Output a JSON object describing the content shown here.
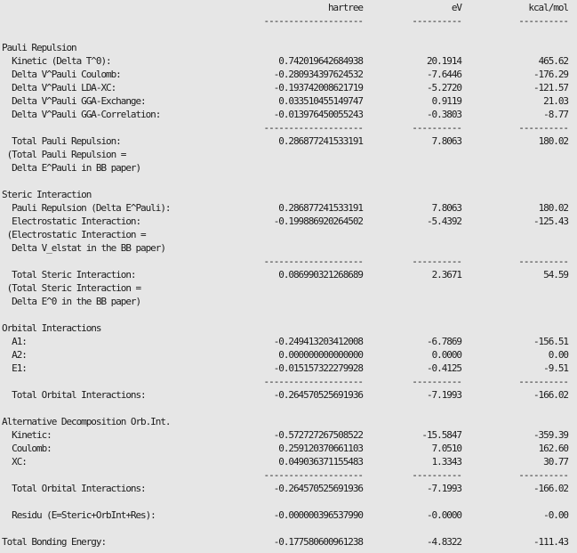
{
  "rows": [
    {
      "label": "",
      "hartree": "hartree",
      "ev": "eV",
      "kcal": "kcal/mol"
    },
    {
      "label": "",
      "hartree": "--------------------",
      "ev": "----------",
      "kcal": "----------"
    },
    {
      "label": ""
    },
    {
      "label": "Pauli Repulsion"
    },
    {
      "label": "  Kinetic (Delta T^0):",
      "hartree": "0.742019642684938",
      "ev": "20.1914",
      "kcal": "465.62"
    },
    {
      "label": "  Delta V^Pauli Coulomb:",
      "hartree": "-0.280934397624532",
      "ev": "-7.6446",
      "kcal": "-176.29"
    },
    {
      "label": "  Delta V^Pauli LDA-XC:",
      "hartree": "-0.193742008621719",
      "ev": "-5.2720",
      "kcal": "-121.57"
    },
    {
      "label": "  Delta V^Pauli GGA-Exchange:",
      "hartree": "0.033510455149747",
      "ev": "0.9119",
      "kcal": "21.03"
    },
    {
      "label": "  Delta V^Pauli GGA-Correlation:",
      "hartree": "-0.013976450055243",
      "ev": "-0.3803",
      "kcal": "-8.77"
    },
    {
      "label": "",
      "hartree": "--------------------",
      "ev": "----------",
      "kcal": "----------"
    },
    {
      "label": "  Total Pauli Repulsion:",
      "hartree": "0.286877241533191",
      "ev": "7.8063",
      "kcal": "180.02"
    },
    {
      "label": " (Total Pauli Repulsion ="
    },
    {
      "label": "  Delta E^Pauli in BB paper)"
    },
    {
      "label": ""
    },
    {
      "label": "Steric Interaction"
    },
    {
      "label": "  Pauli Repulsion (Delta E^Pauli):",
      "hartree": "0.286877241533191",
      "ev": "7.8063",
      "kcal": "180.02"
    },
    {
      "label": "  Electrostatic Interaction:",
      "hartree": "-0.199886920264502",
      "ev": "-5.4392",
      "kcal": "-125.43"
    },
    {
      "label": " (Electrostatic Interaction ="
    },
    {
      "label": "  Delta V_elstat in the BB paper)"
    },
    {
      "label": "",
      "hartree": "--------------------",
      "ev": "----------",
      "kcal": "----------"
    },
    {
      "label": "  Total Steric Interaction:",
      "hartree": "0.086990321268689",
      "ev": "2.3671",
      "kcal": "54.59"
    },
    {
      "label": " (Total Steric Interaction ="
    },
    {
      "label": "  Delta E^0 in the BB paper)"
    },
    {
      "label": ""
    },
    {
      "label": "Orbital Interactions"
    },
    {
      "label": "  A1:",
      "hartree": "-0.249413203412008",
      "ev": "-6.7869",
      "kcal": "-156.51"
    },
    {
      "label": "  A2:",
      "hartree": "0.000000000000000",
      "ev": "0.0000",
      "kcal": "0.00"
    },
    {
      "label": "  E1:",
      "hartree": "-0.015157322279928",
      "ev": "-0.4125",
      "kcal": "-9.51"
    },
    {
      "label": "",
      "hartree": "--------------------",
      "ev": "----------",
      "kcal": "----------"
    },
    {
      "label": "  Total Orbital Interactions:",
      "hartree": "-0.264570525691936",
      "ev": "-7.1993",
      "kcal": "-166.02"
    },
    {
      "label": ""
    },
    {
      "label": "Alternative Decomposition Orb.Int."
    },
    {
      "label": "  Kinetic:",
      "hartree": "-0.572727267508522",
      "ev": "-15.5847",
      "kcal": "-359.39"
    },
    {
      "label": "  Coulomb:",
      "hartree": "0.259120370661103",
      "ev": "7.0510",
      "kcal": "162.60"
    },
    {
      "label": "  XC:",
      "hartree": "0.049036371155483",
      "ev": "1.3343",
      "kcal": "30.77"
    },
    {
      "label": "",
      "hartree": "--------------------",
      "ev": "----------",
      "kcal": "----------"
    },
    {
      "label": "  Total Orbital Interactions:",
      "hartree": "-0.264570525691936",
      "ev": "-7.1993",
      "kcal": "-166.02"
    },
    {
      "label": ""
    },
    {
      "label": "  Residu (E=Steric+OrbInt+Res):",
      "hartree": "-0.000000396537990",
      "ev": "-0.0000",
      "kcal": "-0.00"
    },
    {
      "label": ""
    },
    {
      "label": "Total Bonding Energy:",
      "hartree": "-0.177580600961238",
      "ev": "-4.8322",
      "kcal": "-111.43"
    }
  ]
}
